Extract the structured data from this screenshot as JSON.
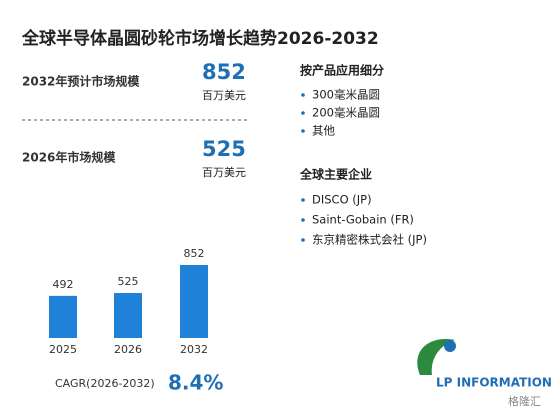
{
  "chart_data": {
    "type": "bar",
    "title": "全球半导体晶圆砂轮市场增长趋势2026-2032",
    "categories": [
      "2025",
      "2026",
      "2032"
    ],
    "values": [
      492,
      525,
      852
    ],
    "color": "#1f82d8"
  },
  "stats": [
    {
      "label": "2032年预计市场规模",
      "value": 852,
      "unit": "百万美元"
    },
    {
      "label": "2026年市场规模",
      "value": 525,
      "unit": "百万美元"
    }
  ],
  "segments": {
    "title": "按产品应用细分",
    "items": [
      "300毫米晶圆",
      "200毫米晶圆",
      "其他"
    ]
  },
  "companies": {
    "title": "全球主要企业",
    "items": [
      "DISCO (JP)",
      "Saint-Gobain (FR)",
      "东京精密株式会社 (JP)"
    ]
  },
  "cagr": {
    "label": "CAGR(2026-2032)",
    "value": "8.4%"
  },
  "logo": "LP INFORMATION",
  "watermark": "格隆汇"
}
